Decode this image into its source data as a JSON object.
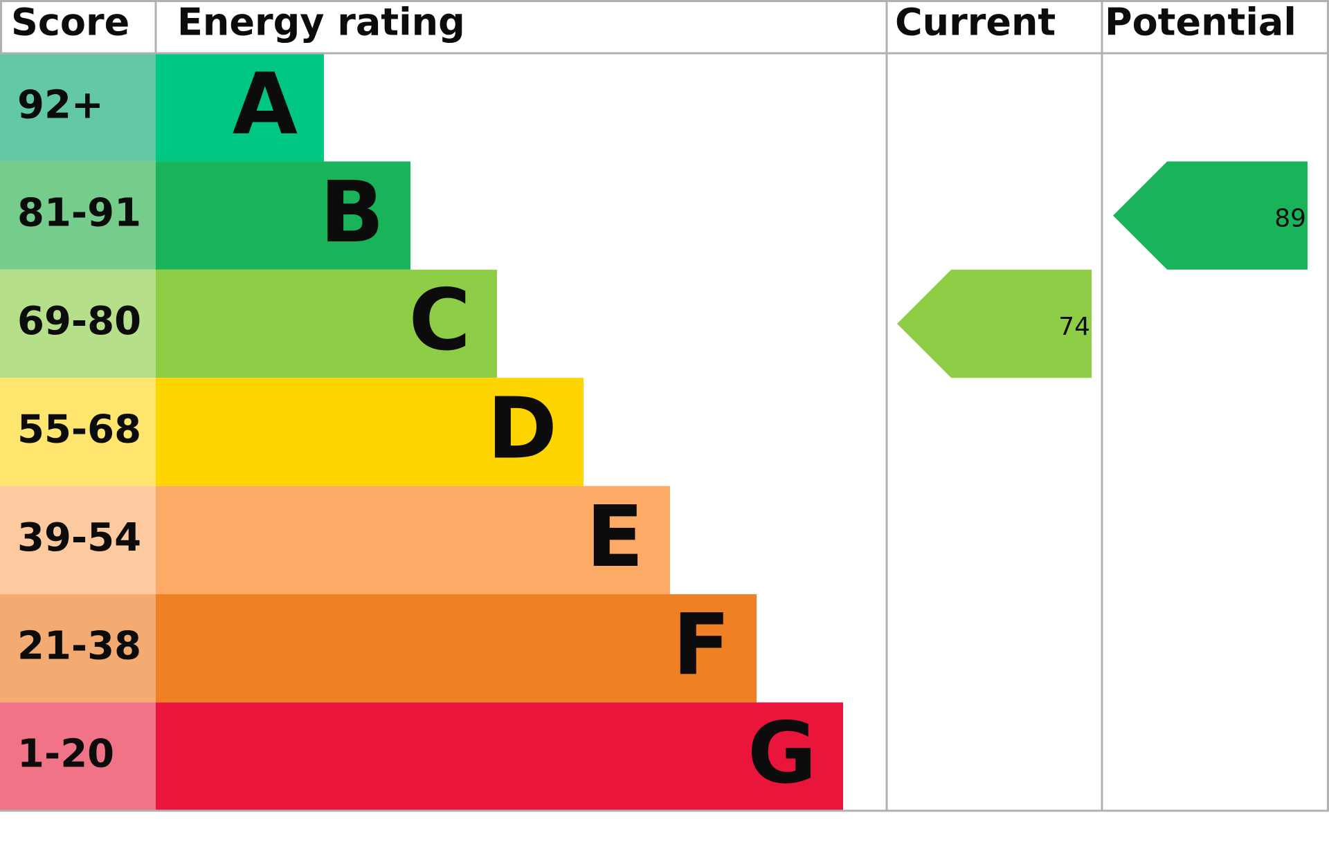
{
  "headers": {
    "score": "Score",
    "rating": "Energy rating",
    "current": "Current",
    "potential": "Potential"
  },
  "bands": [
    {
      "score": "92+",
      "letter": "A",
      "color": "#00c781",
      "score_color": "#63c9a5"
    },
    {
      "score": "81-91",
      "letter": "B",
      "color": "#19b459",
      "score_color": "#75cc8b"
    },
    {
      "score": "69-80",
      "letter": "C",
      "color": "#8dce46",
      "score_color": "#b5e089"
    },
    {
      "score": "55-68",
      "letter": "D",
      "color": "#ffd500",
      "score_color": "#fee56d"
    },
    {
      "score": "39-54",
      "letter": "E",
      "color": "#fcaa65",
      "score_color": "#fdc99f"
    },
    {
      "score": "21-38",
      "letter": "F",
      "color": "#ef8023",
      "score_color": "#f4ab71"
    },
    {
      "score": "1-20",
      "letter": "G",
      "color": "#e9153b",
      "score_color": "#f17388"
    }
  ],
  "current": 74,
  "potential": 89
}
